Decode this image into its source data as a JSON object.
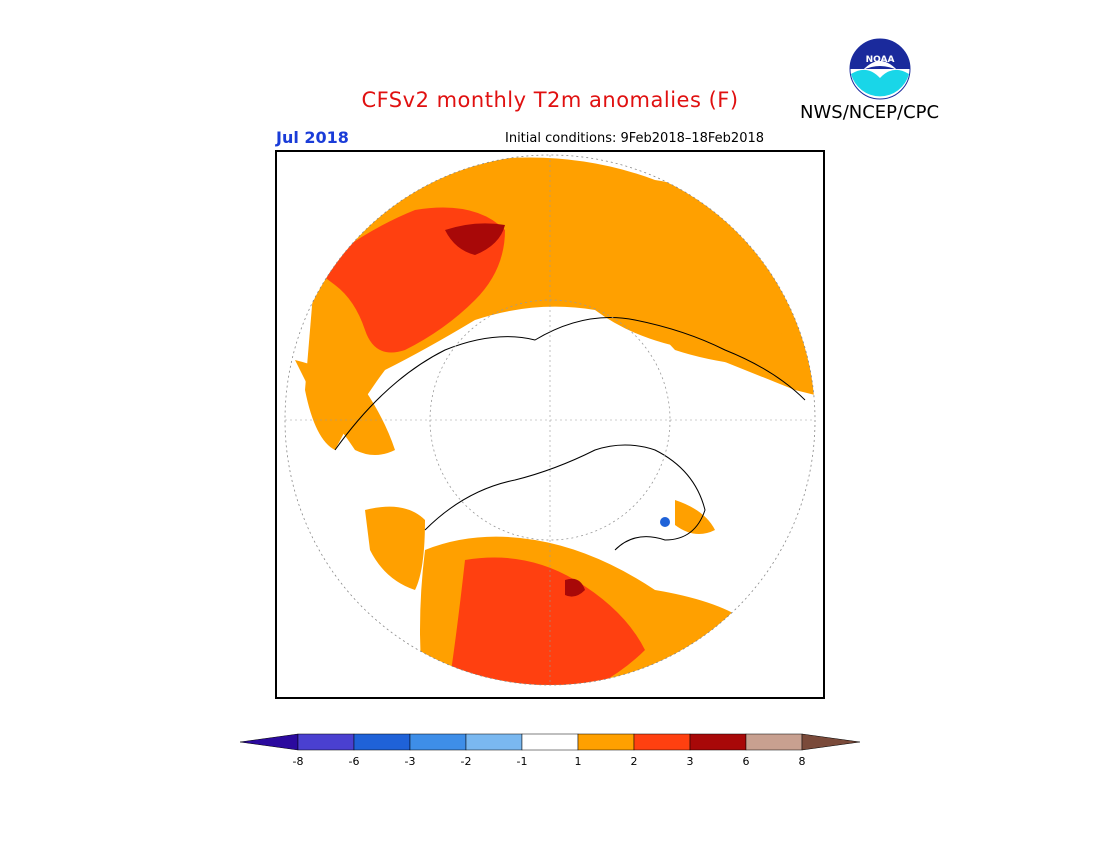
{
  "header": {
    "title": "CFSv2 monthly T2m anomalies (F)",
    "agency": "NWS/NCEP/CPC",
    "logo_text": "NOAA",
    "month": "Jul 2018",
    "initial_conditions": "Initial conditions: 9Feb2018–18Feb2018"
  },
  "map": {
    "projection": "north-polar-stereographic",
    "units": "F"
  },
  "colorbar": {
    "colors": [
      "#2b0a9e",
      "#4a40d0",
      "#1f62d8",
      "#3e8ee8",
      "#7ab8f0",
      "#ffffff",
      "#ffa000",
      "#ff4010",
      "#a80808",
      "#c8a090",
      "#7a4a3a"
    ],
    "tick_labels": [
      "-8",
      "-6",
      "-3",
      "-2",
      "-1",
      "1",
      "2",
      "3",
      "6",
      "8"
    ]
  }
}
